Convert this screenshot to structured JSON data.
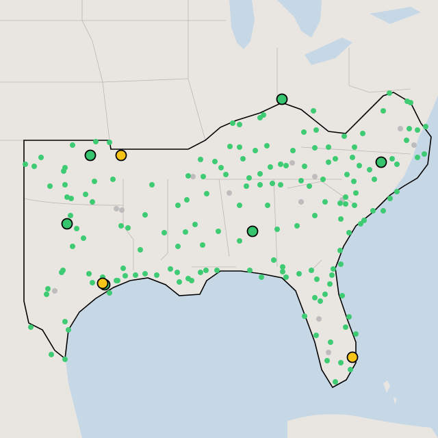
{
  "map": {
    "land_color": "#e9e6e2",
    "water_color": "#c6d7e6",
    "border_color": "#000000",
    "station_color": "#3ecb74",
    "site_color": "#36c46e",
    "alert_color": "#f6c417",
    "inactive_color": "#bdbdbd"
  }
}
